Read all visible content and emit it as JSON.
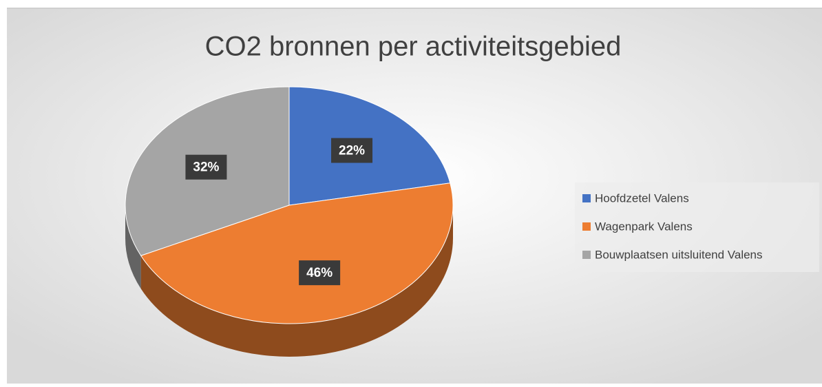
{
  "chart_data": {
    "type": "pie",
    "title": "CO2 bronnen per activiteitsgebied",
    "categories": [
      "Hoofdzetel Valens",
      "Wagenpark Valens",
      "Bouwplaatsen uitsluitend Valens"
    ],
    "values": [
      22,
      46,
      32
    ],
    "value_labels": [
      "22%",
      "46%",
      "32%"
    ],
    "colors": [
      "#4472c4",
      "#ed7d31",
      "#a5a5a5"
    ],
    "legend": "right"
  }
}
